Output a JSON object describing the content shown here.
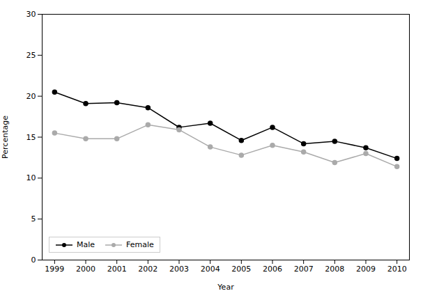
{
  "chart_data": {
    "type": "line",
    "x": [
      1999,
      2000,
      2001,
      2002,
      2003,
      2004,
      2005,
      2006,
      2007,
      2008,
      2009,
      2010
    ],
    "xlabel": "Year",
    "ylabel": "Percentage",
    "xlim": [
      1998.6,
      2010.4
    ],
    "xticks": [
      1999,
      2000,
      2001,
      2002,
      2003,
      2004,
      2005,
      2006,
      2007,
      2008,
      2009,
      2010
    ],
    "ylim": [
      0,
      30
    ],
    "yticks": [
      0,
      5,
      10,
      15,
      20,
      25,
      30
    ],
    "grid": false,
    "legend": "lower left",
    "series": [
      {
        "name": "Male",
        "color": "#000000",
        "marker": "circle",
        "values": [
          20.5,
          19.1,
          19.2,
          18.6,
          16.2,
          16.7,
          14.6,
          16.2,
          14.2,
          14.5,
          13.7,
          12.4
        ]
      },
      {
        "name": "Female",
        "color": "#aaaaaa",
        "marker": "circle",
        "values": [
          15.5,
          14.8,
          14.8,
          16.5,
          15.9,
          13.8,
          12.8,
          14.0,
          13.2,
          11.9,
          13.0,
          11.4
        ]
      }
    ]
  }
}
